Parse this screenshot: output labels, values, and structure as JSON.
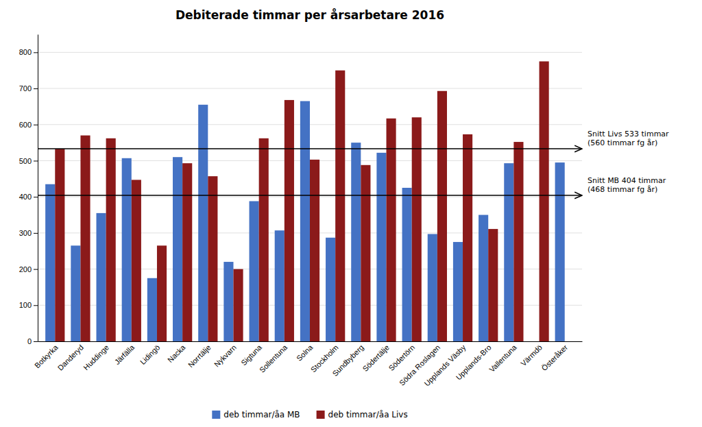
{
  "chart_data": {
    "type": "bar",
    "title": "Debiterade timmar per årsarbetare 2016",
    "categories": [
      "Botkyrka",
      "Danderyd",
      "Huddinge",
      "Järfälla",
      "Lidingö",
      "Nacka",
      "Norrtälje",
      "Nykvarn",
      "Sigtuna",
      "Sollentuna",
      "Solna",
      "Stockholm",
      "Sundbyberg",
      "Södertälje",
      "Södertörn",
      "Södra Roslagen",
      "Upplands Väsby",
      "Upplands-Bro",
      "Vallentuna",
      "Värmdö",
      "Österåker"
    ],
    "series": [
      {
        "name": "deb timmar/åa MB",
        "color": "#4472C4",
        "values": [
          435,
          265,
          355,
          507,
          175,
          510,
          655,
          220,
          388,
          307,
          665,
          287,
          550,
          522,
          425,
          297,
          275,
          350,
          493,
          null,
          495
        ]
      },
      {
        "name": "deb timmar/åa Livs",
        "color": "#8B1A1A",
        "values": [
          533,
          570,
          562,
          447,
          265,
          493,
          457,
          200,
          562,
          668,
          503,
          750,
          488,
          617,
          620,
          693,
          573,
          311,
          552,
          775,
          null
        ]
      }
    ],
    "annotations": [
      {
        "value": 533,
        "label": "Snitt Livs 533 timmar\n(560 timmar fg år)"
      },
      {
        "value": 404,
        "label": "Snitt MB 404 timmar\n(468 timmar fg år)"
      }
    ],
    "ylim": [
      0,
      850
    ],
    "yticks": [
      0,
      100,
      200,
      300,
      400,
      500,
      600,
      700,
      800
    ],
    "grid": true,
    "legend": "bottom"
  }
}
